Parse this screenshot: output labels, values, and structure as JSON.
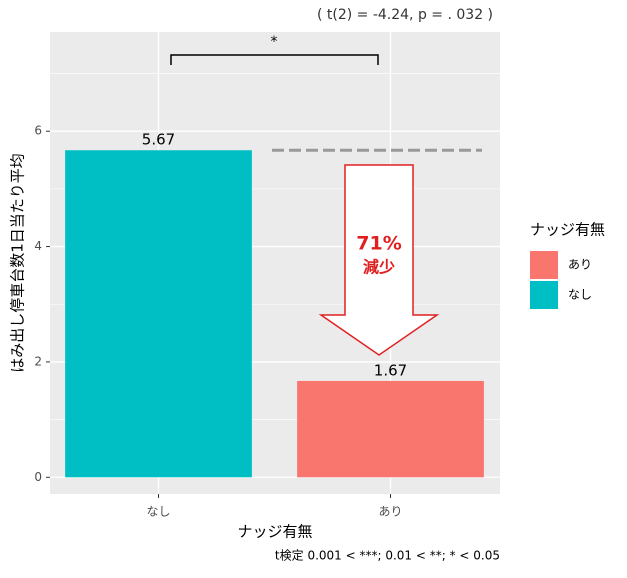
{
  "chart_data": {
    "type": "bar",
    "stat_annotation": "( t(2) = -4.24, p = . 032 )",
    "significance": "*",
    "reduction_label": "71%",
    "reduction_text": "減少",
    "footnote": "t検定 0.001 < ***; 0.01 < **; * < 0.05",
    "x_label": "ナッジ有無",
    "y_label": "はみ出し停車台数1日当たり平均",
    "categories": [
      "なし",
      "あり"
    ],
    "values": [
      5.67,
      1.67
    ],
    "colors": [
      "#00BFC4",
      "#F8766D"
    ],
    "ylim": [
      -0.29,
      7.72
    ],
    "yticks": [
      0,
      2,
      4,
      6
    ],
    "grid": true,
    "legend": {
      "title": "ナッジ有無",
      "entries": [
        {
          "label": "あり",
          "color": "#F8766D"
        },
        {
          "label": "なし",
          "color": "#00BFC4"
        }
      ],
      "position": "right"
    }
  }
}
